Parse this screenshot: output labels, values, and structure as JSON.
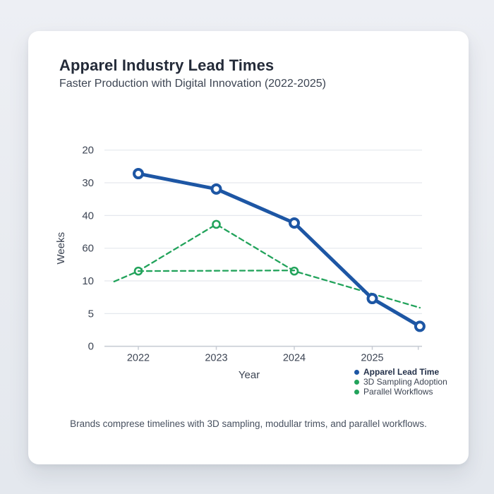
{
  "page": {
    "background_color": "#e9edf2"
  },
  "card": {
    "title": "Apparel Industry Lead Times",
    "subtitle": "Faster Production with Digital Innovation (2022-2025)",
    "caption": "Brands comprese timelines with 3D sampling, modullar trims, and parallel workflows."
  },
  "colors": {
    "card_background": "#ffffff",
    "title_text": "#242b39",
    "subtitle_text": "#3c4452",
    "axis_text": "#3d4554",
    "gridline": "#e5e8ee",
    "axis_line": "#c8cdd5",
    "lead_time_blue": "#1d56a4",
    "digital_green": "#22a35b",
    "caption_text": "#47505f",
    "legend_bold_text": "#233049"
  },
  "chart_data": {
    "type": "line",
    "title": "Apparel Industry Lead Times",
    "subtitle": "Faster Production with Digital Innovation (2022-2025)",
    "xlabel": "Year",
    "ylabel": "Weeks",
    "categories": [
      "2022",
      "2023",
      "2024",
      "2025"
    ],
    "y_tick_labels_top_to_bottom": [
      "20",
      "30",
      "40",
      "60",
      "10",
      "5",
      "0"
    ],
    "y_axis_note": "y tick labels are printed in this exact non-monotonic order in the image; grid_y is the gridline row position (0 = top '20' line, 6 = bottom '0' axis line)",
    "grid": true,
    "legend_position": "bottom-right",
    "series": [
      {
        "name": "Apparel Lead Time",
        "color": "#1d56a4",
        "style": "solid",
        "weeks_as_read": [
          27,
          32,
          45,
          7,
          3
        ],
        "points": [
          {
            "x_year": 2022,
            "grid_y": 0.72,
            "marker": true
          },
          {
            "x_year": 2023,
            "grid_y": 1.19,
            "marker": true
          },
          {
            "x_year": 2024,
            "grid_y": 2.23,
            "marker": true
          },
          {
            "x_year": 2025,
            "grid_y": 4.54,
            "marker": true
          },
          {
            "x_year": 2025.61,
            "grid_y": 5.39,
            "marker": true
          }
        ]
      },
      {
        "name": "3D Sampling Adoption",
        "color": "#22a35b",
        "style": "dashed",
        "weeks_as_read": [
          12,
          45,
          12,
          6
        ],
        "points": [
          {
            "x_year": 2021.69,
            "grid_y": 4.02,
            "marker": false
          },
          {
            "x_year": 2022,
            "grid_y": 3.7,
            "marker": true
          },
          {
            "x_year": 2023,
            "grid_y": 2.27,
            "marker": true
          },
          {
            "x_year": 2024,
            "grid_y": 3.7,
            "marker": true
          },
          {
            "x_year": 2025.61,
            "grid_y": 4.82,
            "marker": false
          }
        ]
      },
      {
        "name": "Parallel Workflows",
        "color": "#22a35b",
        "style": "dashed",
        "weeks_as_read": [
          12,
          12
        ],
        "points": [
          {
            "x_year": 2022,
            "grid_y": 3.7,
            "marker": false
          },
          {
            "x_year": 2024,
            "grid_y": 3.68,
            "marker": false
          }
        ]
      }
    ]
  },
  "legend": {
    "items": [
      {
        "label": "Apparel Lead Time",
        "color": "#1d56a4",
        "bold": true
      },
      {
        "label": "3D Sampling Adoption",
        "color": "#22a35b",
        "bold": false
      },
      {
        "label": "Parallel Workflows",
        "color": "#22a35b",
        "bold": false
      }
    ]
  }
}
